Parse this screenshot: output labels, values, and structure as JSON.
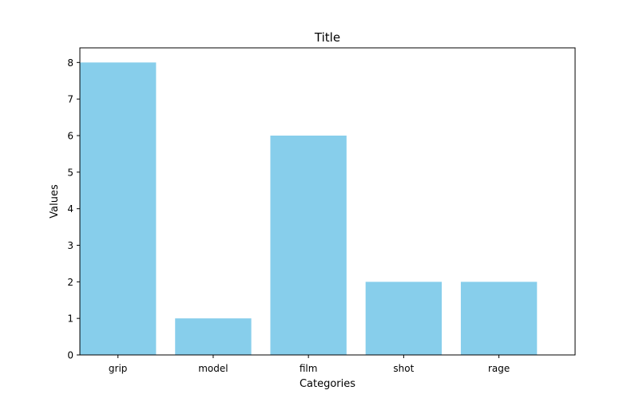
{
  "chart_data": {
    "type": "bar",
    "title": "Title",
    "xlabel": "Categories",
    "ylabel": "Values",
    "categories": [
      "grip",
      "model",
      "film",
      "shot",
      "rage"
    ],
    "values": [
      8,
      1,
      6,
      2,
      2
    ],
    "ylim": [
      0,
      8.4
    ],
    "yticks": [
      0,
      1,
      2,
      3,
      4,
      5,
      6,
      7,
      8
    ],
    "bar_color": "#87ceeb",
    "grid": false,
    "legend": "none"
  }
}
